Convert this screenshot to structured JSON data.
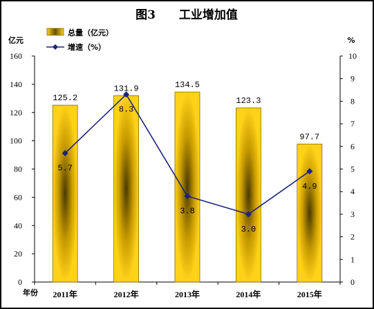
{
  "chart_data": {
    "type": "bar+line",
    "title": "图3　　工业增加值",
    "categories": [
      "2011年",
      "2012年",
      "2013年",
      "2014年",
      "2015年"
    ],
    "x_axis_unit": "年份",
    "y_left": {
      "unit": "亿元",
      "range": [
        0,
        160
      ],
      "ticks": [
        "0",
        "20",
        "40",
        "60",
        "80",
        "100",
        "120",
        "140",
        "160"
      ]
    },
    "y_right": {
      "unit": "%",
      "range": [
        0,
        10
      ],
      "ticks": [
        "0",
        "1",
        "2",
        "3",
        "4",
        "5",
        "6",
        "7",
        "8",
        "9",
        "10"
      ]
    },
    "series": [
      {
        "name": "总量（亿元）",
        "type": "bar",
        "axis": "left",
        "values": [
          125.2,
          131.9,
          134.5,
          123.3,
          97.7
        ],
        "labels": [
          "125.2",
          "131.9",
          "134.5",
          "123.3",
          "97.7"
        ]
      },
      {
        "name": "增速（%）",
        "type": "line",
        "axis": "right",
        "values": [
          5.7,
          8.3,
          3.8,
          3.0,
          4.9
        ],
        "labels": [
          "5.7",
          "8.3",
          "3.8",
          "3.0",
          "4.9"
        ]
      }
    ],
    "legend": "top-left",
    "grid": false
  },
  "colors": {
    "bar_light": "#FFD21A",
    "bar_dark": "#4A3A00",
    "bar_border": "#8A6A00",
    "line": "#1A237E",
    "marker": "#1A237E"
  }
}
